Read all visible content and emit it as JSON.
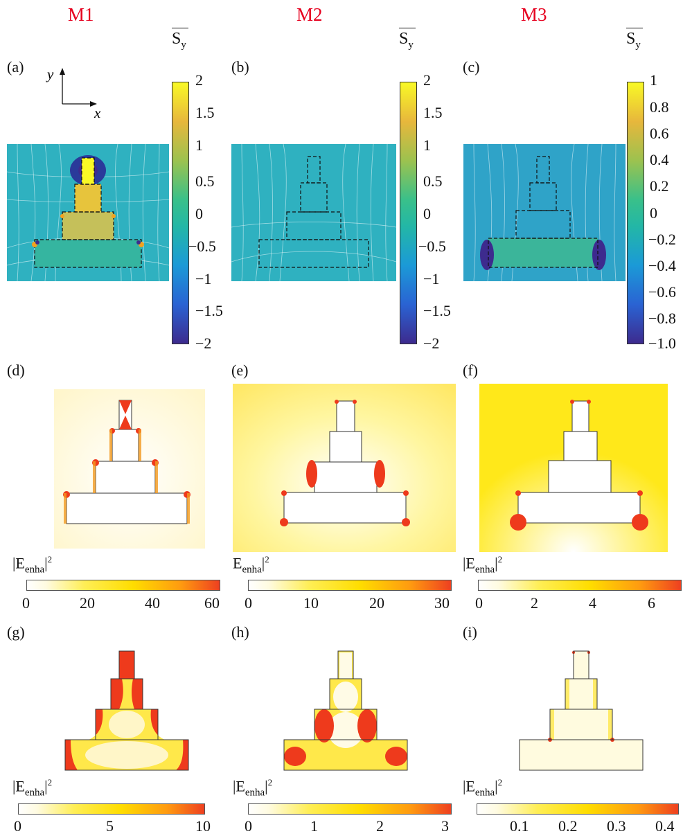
{
  "modes": [
    "M1",
    "M2",
    "M3"
  ],
  "panel_labels": [
    "(a)",
    "(b)",
    "(c)",
    "(d)",
    "(e)",
    "(f)",
    "(g)",
    "(h)",
    "(i)"
  ],
  "axes": {
    "y": "y",
    "x": "x"
  },
  "sy_label": {
    "main": "S",
    "sub": "y"
  },
  "sy_colorbars": [
    {
      "ticks": [
        "2",
        "1.5",
        "1",
        "0.5",
        "0",
        "−0.5",
        "−1",
        "−1.5",
        "−2"
      ]
    },
    {
      "ticks": [
        "2",
        "1.5",
        "1",
        "0.5",
        "0",
        "−0.5",
        "−1",
        "−1.5",
        "−2"
      ]
    },
    {
      "ticks": [
        "1",
        "0.8",
        "0.6",
        "0.4",
        "0.2",
        "0",
        "−0.2",
        "−0.4",
        "−0.6",
        "−0.8",
        "−1.0"
      ]
    }
  ],
  "enha_labels": [
    {
      "pre": "|E",
      "sub": "enha",
      "post": "|"
    },
    {
      "pre": "E",
      "sub": "enha",
      "post": "|"
    },
    {
      "pre": "|E",
      "sub": "enha",
      "post": "|"
    },
    {
      "pre": "|E",
      "sub": "enha",
      "post": "|"
    },
    {
      "pre": "|E",
      "sub": "enha",
      "post": "|"
    },
    {
      "pre": "|E",
      "sub": "enha",
      "post": "|"
    }
  ],
  "enha_sup": "2",
  "enha_colorbars": [
    {
      "ticks": [
        "0",
        "20",
        "40",
        "60"
      ]
    },
    {
      "ticks": [
        "0",
        "10",
        "20",
        "30"
      ]
    },
    {
      "ticks": [
        "0",
        "2",
        "4",
        "6"
      ]
    },
    {
      "ticks": [
        "0",
        "5",
        "10"
      ]
    },
    {
      "ticks": [
        "0",
        "1",
        "2",
        "3"
      ]
    },
    {
      "ticks": [
        "0.1",
        "0.2",
        "0.3",
        "0.4"
      ]
    }
  ],
  "colors": {
    "mode_label": "#e6001f",
    "field_bg": "#2fb1c0",
    "hot": "#ee3a1c",
    "warm": "#ffe41a"
  }
}
